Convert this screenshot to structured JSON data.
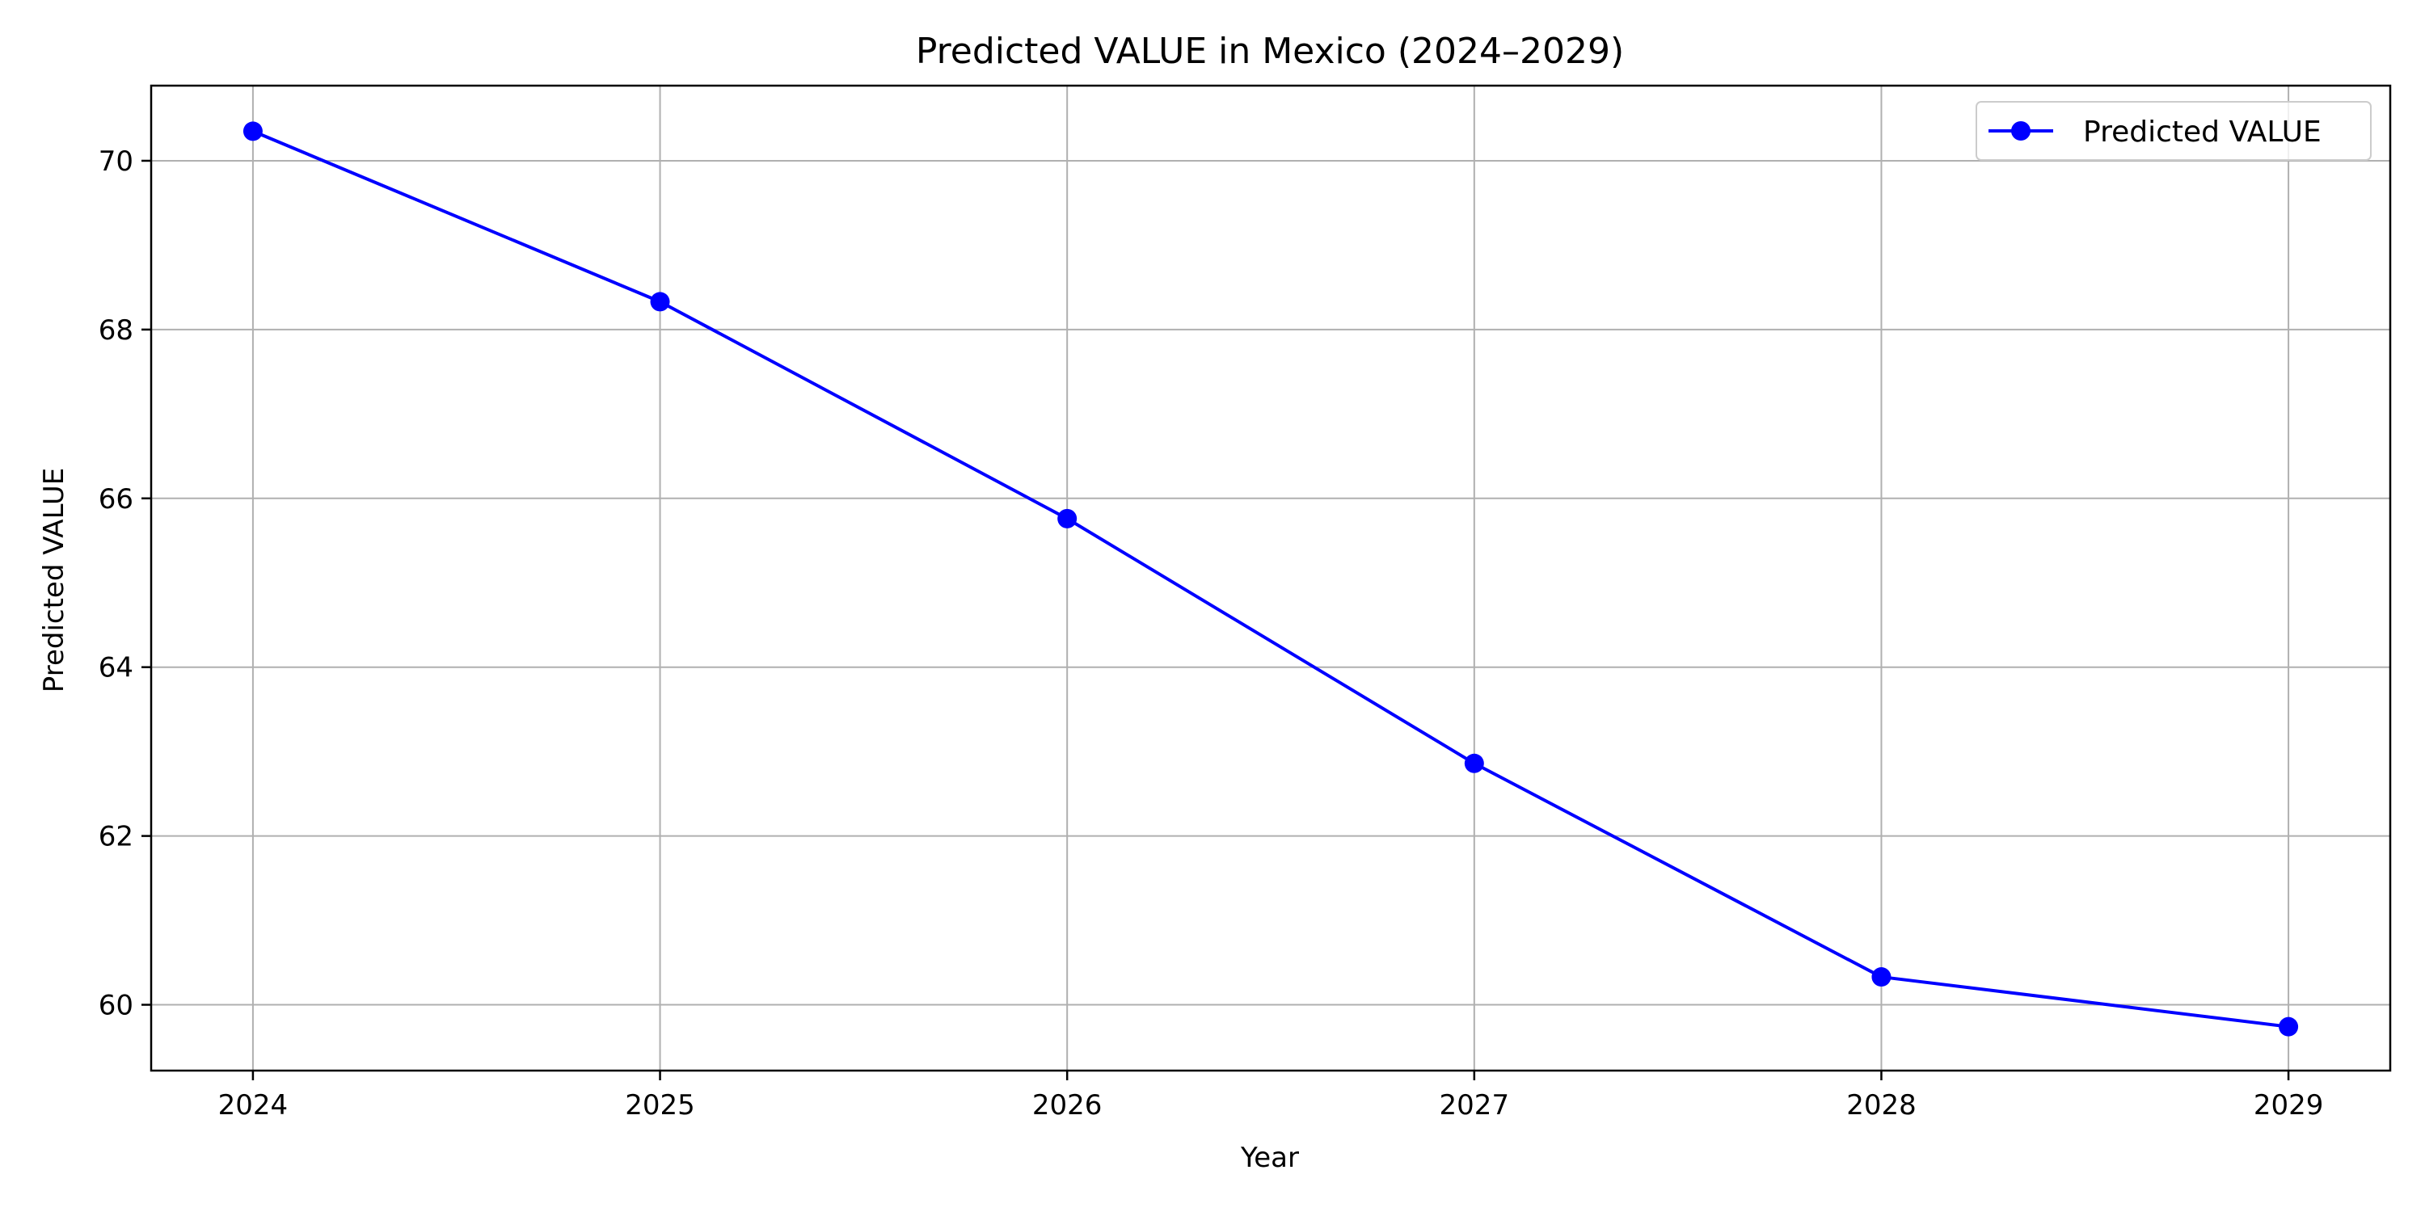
{
  "chart_data": {
    "type": "line",
    "title": "Predicted VALUE in Mexico (2024–2029)",
    "xlabel": "Year",
    "ylabel": "Predicted VALUE",
    "x": [
      2024,
      2025,
      2026,
      2027,
      2028,
      2029
    ],
    "x_ticks": [
      "2024",
      "2025",
      "2026",
      "2027",
      "2028",
      "2029"
    ],
    "y_ticks": [
      "60",
      "62",
      "64",
      "66",
      "68",
      "70"
    ],
    "xlim": [
      2023.75,
      2029.25
    ],
    "ylim": [
      59.22,
      70.89
    ],
    "grid": true,
    "legend_position": "top-right",
    "series": [
      {
        "name": "Predicted VALUE",
        "values": [
          70.35,
          68.33,
          65.76,
          62.86,
          60.33,
          59.74
        ],
        "color": "#0000ff",
        "marker": "circle"
      }
    ],
    "grid_color": "#b0b0b0",
    "axis_color": "#000000"
  }
}
